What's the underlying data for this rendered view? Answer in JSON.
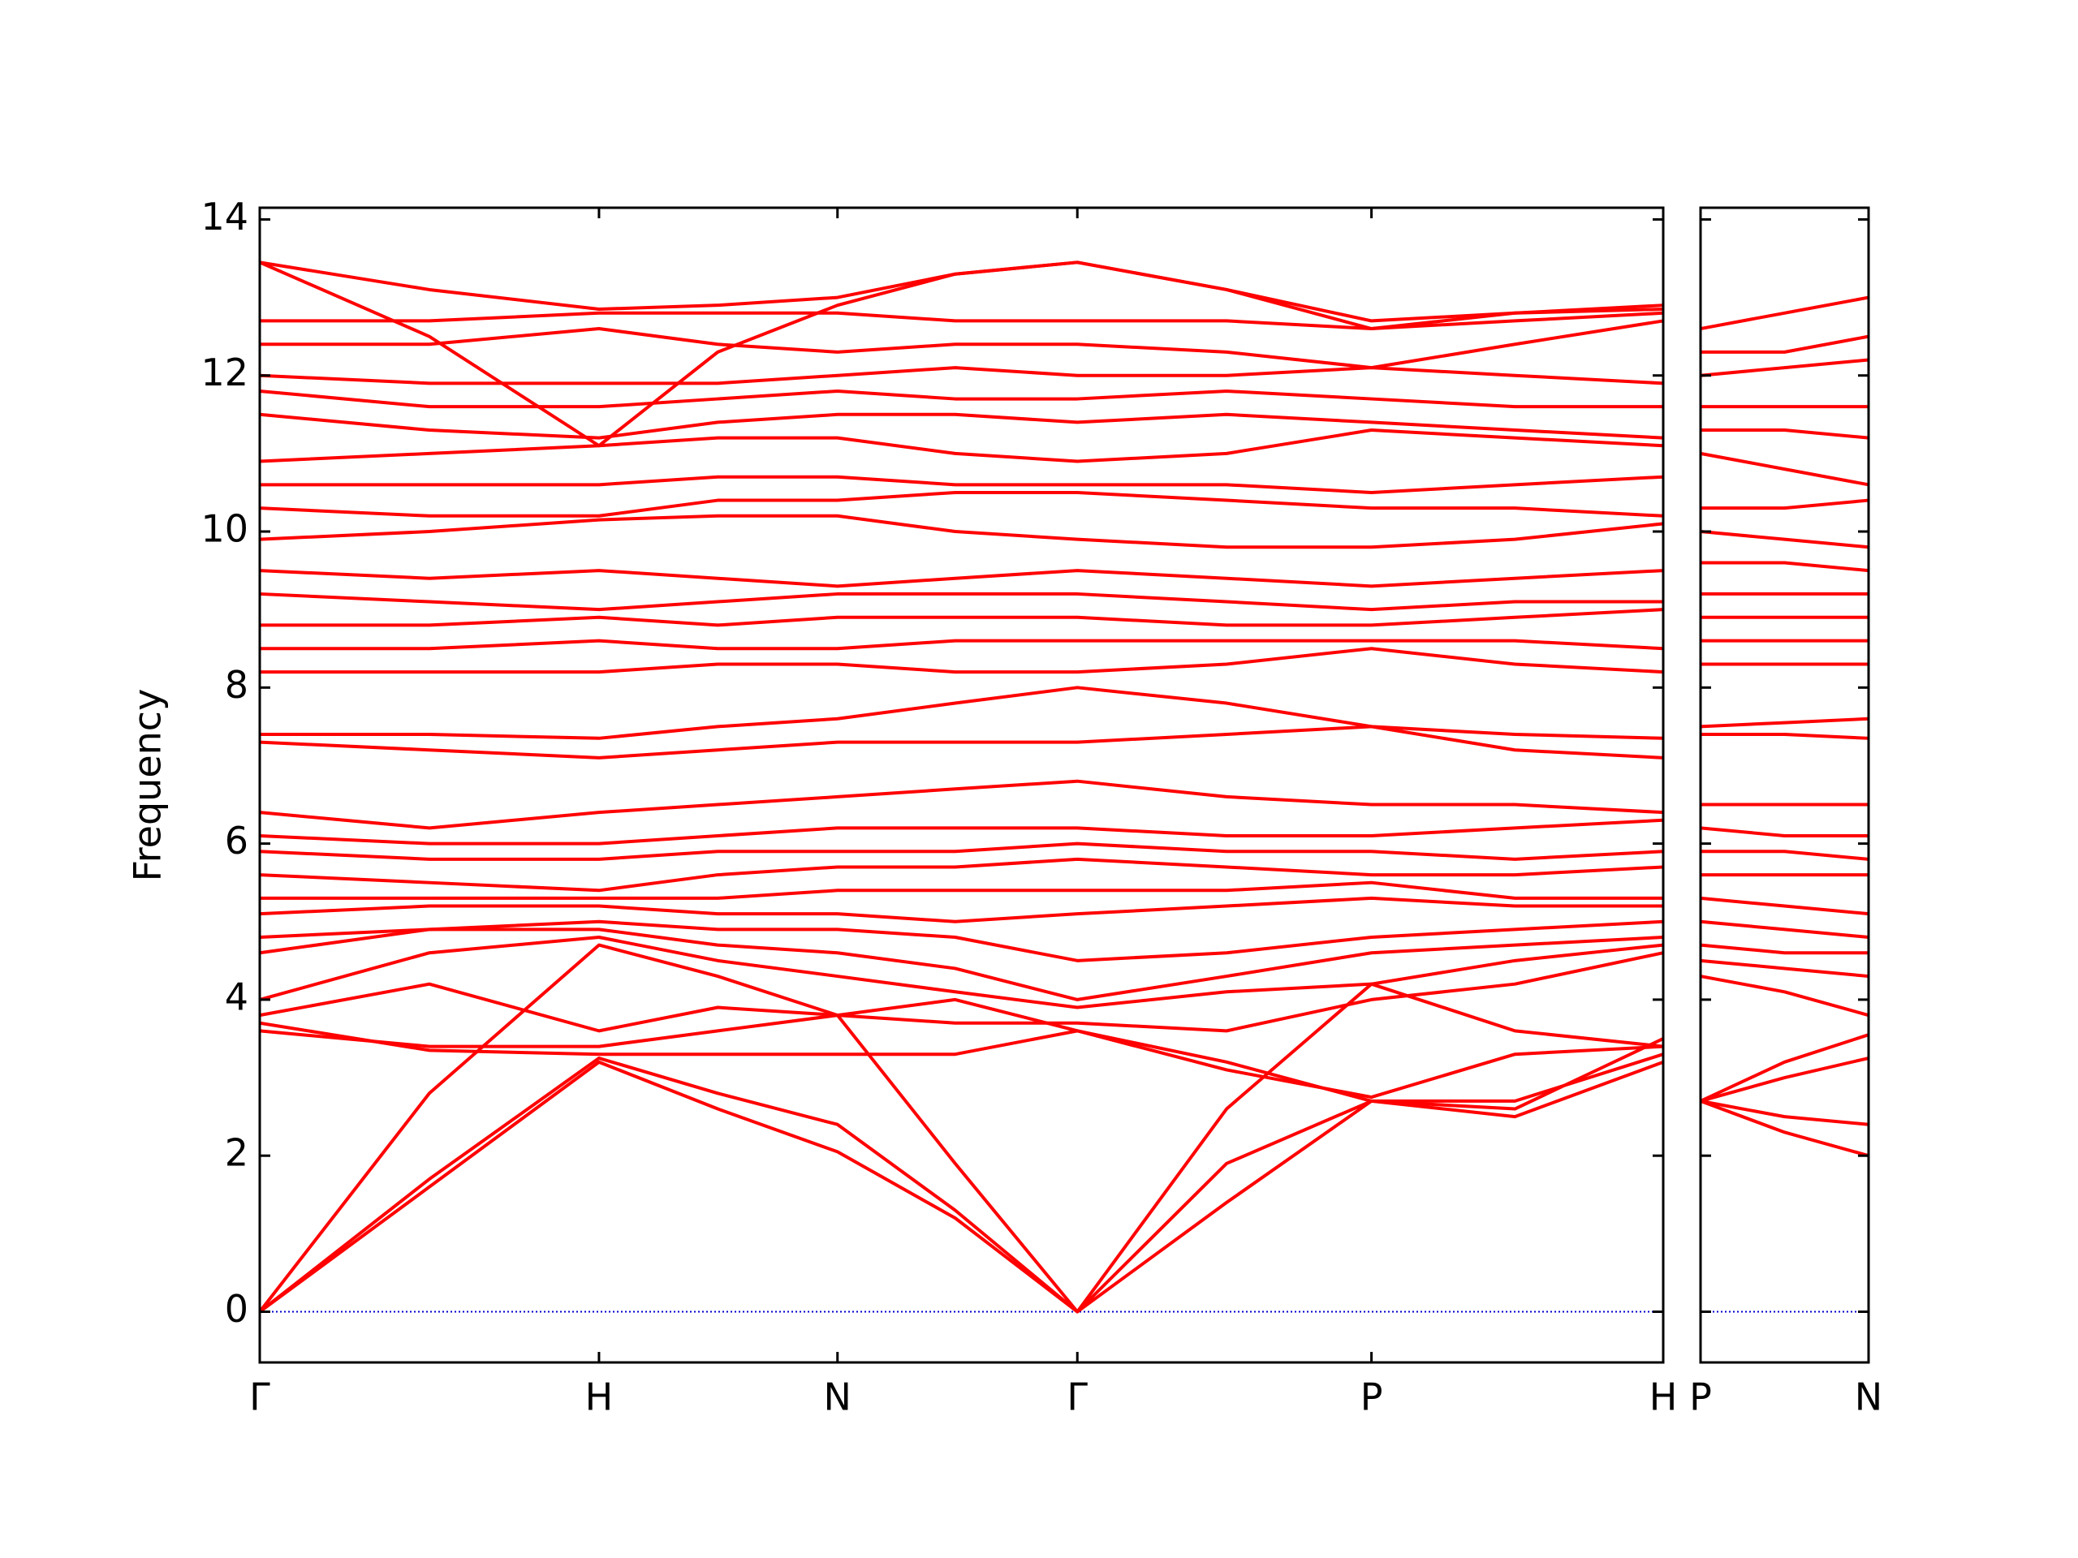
{
  "chart_data": [
    {
      "type": "line",
      "ylabel": "Frequency",
      "color": "#ff0000",
      "x": [
        0,
        0.5,
        1,
        1.35,
        1.703,
        2.05,
        2.41,
        2.85,
        3.277,
        3.7,
        4.137
      ],
      "xlim": [
        0,
        4.137
      ],
      "xticks": [
        {
          "value": 0,
          "label": "Γ"
        },
        {
          "value": 1,
          "label": "H"
        },
        {
          "value": 1.703,
          "label": "N"
        },
        {
          "value": 2.41,
          "label": "Γ"
        },
        {
          "value": 3.277,
          "label": "P"
        },
        {
          "value": 4.137,
          "label": "H"
        }
      ],
      "ylim": [
        -0.65,
        14.15
      ],
      "yticks": [
        0,
        2,
        4,
        6,
        8,
        10,
        12,
        14
      ],
      "zero_line": {
        "y": 0,
        "color": "#0000cc"
      },
      "series": [
        {
          "values": [
            0,
            1.6,
            3.2,
            2.6,
            2.05,
            1.2,
            0,
            1.4,
            2.7,
            2.5,
            3.2
          ]
        },
        {
          "values": [
            0,
            1.7,
            3.25,
            2.8,
            2.4,
            1.3,
            0,
            1.9,
            2.7,
            2.7,
            3.3
          ]
        },
        {
          "values": [
            0,
            2.8,
            4.7,
            4.3,
            3.8,
            1.9,
            0,
            2.6,
            4.2,
            3.6,
            3.4
          ]
        },
        {
          "values": [
            3.6,
            3.4,
            3.4,
            3.6,
            3.8,
            4.0,
            3.6,
            3.2,
            2.7,
            2.6,
            3.5
          ]
        },
        {
          "values": [
            3.7,
            3.35,
            3.3,
            3.3,
            3.3,
            3.3,
            3.6,
            3.1,
            2.75,
            3.3,
            3.4
          ]
        },
        {
          "values": [
            3.8,
            4.2,
            3.6,
            3.9,
            3.8,
            3.7,
            3.7,
            3.6,
            4.0,
            4.2,
            4.6
          ]
        },
        {
          "values": [
            4.0,
            4.6,
            4.8,
            4.5,
            4.3,
            4.1,
            3.9,
            4.1,
            4.2,
            4.5,
            4.7
          ]
        },
        {
          "values": [
            4.6,
            4.9,
            4.9,
            4.7,
            4.6,
            4.4,
            4.0,
            4.3,
            4.6,
            4.7,
            4.8
          ]
        },
        {
          "values": [
            4.8,
            4.9,
            5.0,
            4.9,
            4.9,
            4.8,
            4.5,
            4.6,
            4.8,
            4.9,
            5.0
          ]
        },
        {
          "values": [
            5.1,
            5.2,
            5.2,
            5.1,
            5.1,
            5.0,
            5.1,
            5.2,
            5.3,
            5.2,
            5.2
          ]
        },
        {
          "values": [
            5.3,
            5.3,
            5.3,
            5.3,
            5.4,
            5.4,
            5.4,
            5.4,
            5.5,
            5.3,
            5.3
          ]
        },
        {
          "values": [
            5.6,
            5.5,
            5.4,
            5.6,
            5.7,
            5.7,
            5.8,
            5.7,
            5.6,
            5.6,
            5.7
          ]
        },
        {
          "values": [
            5.9,
            5.8,
            5.8,
            5.9,
            5.9,
            5.9,
            6.0,
            5.9,
            5.9,
            5.8,
            5.9
          ]
        },
        {
          "values": [
            6.1,
            6.0,
            6.0,
            6.1,
            6.2,
            6.2,
            6.2,
            6.1,
            6.1,
            6.2,
            6.3
          ]
        },
        {
          "values": [
            6.4,
            6.2,
            6.4,
            6.5,
            6.6,
            6.7,
            6.8,
            6.6,
            6.5,
            6.5,
            6.4
          ]
        },
        {
          "values": [
            7.3,
            7.2,
            7.1,
            7.2,
            7.3,
            7.3,
            7.3,
            7.4,
            7.5,
            7.2,
            7.1
          ]
        },
        {
          "values": [
            7.4,
            7.4,
            7.35,
            7.5,
            7.6,
            7.8,
            8.0,
            7.8,
            7.5,
            7.4,
            7.35
          ]
        },
        {
          "values": [
            8.2,
            8.2,
            8.2,
            8.3,
            8.3,
            8.2,
            8.2,
            8.3,
            8.5,
            8.3,
            8.2
          ]
        },
        {
          "values": [
            8.5,
            8.5,
            8.6,
            8.5,
            8.5,
            8.6,
            8.6,
            8.6,
            8.6,
            8.6,
            8.5
          ]
        },
        {
          "values": [
            8.8,
            8.8,
            8.9,
            8.8,
            8.9,
            8.9,
            8.9,
            8.8,
            8.8,
            8.9,
            9.0
          ]
        },
        {
          "values": [
            9.2,
            9.1,
            9.0,
            9.1,
            9.2,
            9.2,
            9.2,
            9.1,
            9.0,
            9.1,
            9.1
          ]
        },
        {
          "values": [
            9.5,
            9.4,
            9.5,
            9.4,
            9.3,
            9.4,
            9.5,
            9.4,
            9.3,
            9.4,
            9.5
          ]
        },
        {
          "values": [
            9.9,
            10.0,
            10.15,
            10.2,
            10.2,
            10.0,
            9.9,
            9.8,
            9.8,
            9.9,
            10.1
          ]
        },
        {
          "values": [
            10.3,
            10.2,
            10.2,
            10.4,
            10.4,
            10.5,
            10.5,
            10.4,
            10.3,
            10.3,
            10.2
          ]
        },
        {
          "values": [
            10.6,
            10.6,
            10.6,
            10.7,
            10.7,
            10.6,
            10.6,
            10.6,
            10.5,
            10.6,
            10.7
          ]
        },
        {
          "values": [
            10.9,
            11.0,
            11.1,
            11.2,
            11.2,
            11.0,
            10.9,
            11.0,
            11.3,
            11.2,
            11.1
          ]
        },
        {
          "values": [
            11.5,
            11.3,
            11.2,
            11.4,
            11.5,
            11.5,
            11.4,
            11.5,
            11.4,
            11.3,
            11.2
          ]
        },
        {
          "values": [
            11.8,
            11.6,
            11.6,
            11.7,
            11.8,
            11.7,
            11.7,
            11.8,
            11.7,
            11.6,
            11.6
          ]
        },
        {
          "values": [
            12.0,
            11.9,
            11.9,
            11.9,
            12.0,
            12.1,
            12.0,
            12.0,
            12.1,
            12.0,
            11.9
          ]
        },
        {
          "values": [
            12.4,
            12.4,
            12.6,
            12.4,
            12.3,
            12.4,
            12.4,
            12.3,
            12.1,
            12.4,
            12.7
          ]
        },
        {
          "values": [
            12.7,
            12.7,
            12.8,
            12.8,
            12.8,
            12.7,
            12.7,
            12.7,
            12.6,
            12.7,
            12.8
          ]
        },
        {
          "values": [
            13.45,
            12.5,
            11.1,
            12.3,
            12.9,
            13.3,
            13.45,
            13.1,
            12.6,
            12.8,
            12.9
          ]
        },
        {
          "values": [
            13.45,
            13.1,
            12.85,
            12.9,
            13.0,
            13.3,
            13.45,
            13.1,
            12.7,
            12.8,
            12.85
          ]
        }
      ]
    },
    {
      "type": "line",
      "color": "#ff0000",
      "sharey": true,
      "x": [
        0,
        0.25,
        0.5
      ],
      "xlim": [
        0,
        0.5
      ],
      "xticks": [
        {
          "value": 0,
          "label": "P"
        },
        {
          "value": 0.5,
          "label": "N"
        }
      ],
      "zero_line": {
        "y": 0,
        "color": "#0000cc"
      },
      "series": [
        {
          "values": [
            2.7,
            2.3,
            2.0
          ]
        },
        {
          "values": [
            2.7,
            2.5,
            2.4
          ]
        },
        {
          "values": [
            2.7,
            3.0,
            3.25
          ]
        },
        {
          "values": [
            2.7,
            3.2,
            3.55
          ]
        },
        {
          "values": [
            4.3,
            4.1,
            3.8
          ]
        },
        {
          "values": [
            4.5,
            4.4,
            4.3
          ]
        },
        {
          "values": [
            4.7,
            4.6,
            4.6
          ]
        },
        {
          "values": [
            5.0,
            4.9,
            4.8
          ]
        },
        {
          "values": [
            5.3,
            5.2,
            5.1
          ]
        },
        {
          "values": [
            5.6,
            5.6,
            5.6
          ]
        },
        {
          "values": [
            5.9,
            5.9,
            5.8
          ]
        },
        {
          "values": [
            6.2,
            6.1,
            6.1
          ]
        },
        {
          "values": [
            6.5,
            6.5,
            6.5
          ]
        },
        {
          "values": [
            7.4,
            7.4,
            7.35
          ]
        },
        {
          "values": [
            7.5,
            7.55,
            7.6
          ]
        },
        {
          "values": [
            8.3,
            8.3,
            8.3
          ]
        },
        {
          "values": [
            8.6,
            8.6,
            8.6
          ]
        },
        {
          "values": [
            8.9,
            8.9,
            8.9
          ]
        },
        {
          "values": [
            9.2,
            9.2,
            9.2
          ]
        },
        {
          "values": [
            9.6,
            9.6,
            9.5
          ]
        },
        {
          "values": [
            10.0,
            9.9,
            9.8
          ]
        },
        {
          "values": [
            10.3,
            10.3,
            10.4
          ]
        },
        {
          "values": [
            11.0,
            10.8,
            10.6
          ]
        },
        {
          "values": [
            11.3,
            11.3,
            11.2
          ]
        },
        {
          "values": [
            11.6,
            11.6,
            11.6
          ]
        },
        {
          "values": [
            12.0,
            12.1,
            12.2
          ]
        },
        {
          "values": [
            12.3,
            12.3,
            12.5
          ]
        },
        {
          "values": [
            12.6,
            12.8,
            13.0
          ]
        }
      ]
    }
  ]
}
